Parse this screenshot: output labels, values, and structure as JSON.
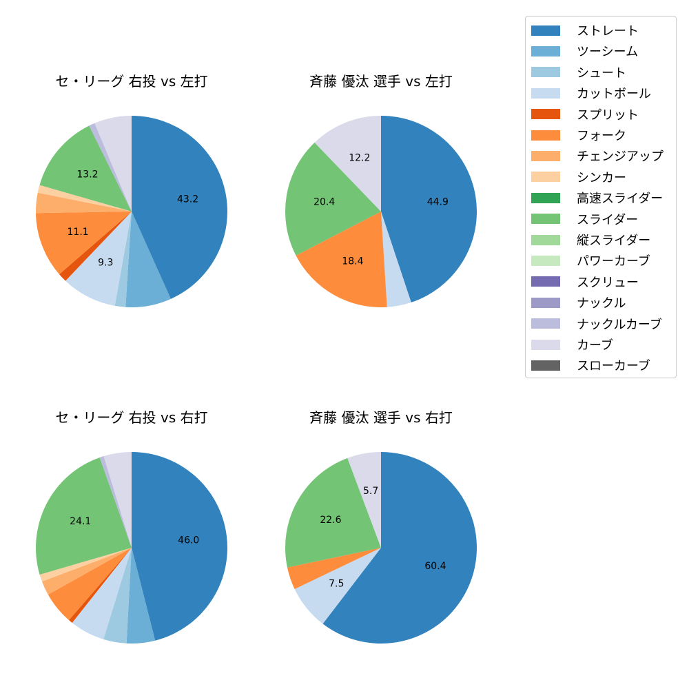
{
  "chart_data": [
    {
      "type": "pie",
      "title": "セ・リーグ 右投 vs 左打",
      "categories": [
        "ストレート",
        "ツーシーム",
        "シュート",
        "カットボール",
        "スプリット",
        "フォーク",
        "チェンジアップ",
        "シンカー",
        "スライダー",
        "ナックルカーブ",
        "カーブ"
      ],
      "values": [
        43.2,
        7.7,
        1.8,
        9.3,
        1.5,
        11.1,
        3.4,
        1.3,
        13.2,
        1.0,
        6.3
      ],
      "labels_shown": [
        "43.2",
        "",
        "",
        "9.3",
        "",
        "11.1",
        "",
        "",
        "13.2",
        "",
        ""
      ]
    },
    {
      "type": "pie",
      "title": "斉藤 優汰 選手 vs 左打",
      "categories": [
        "ストレート",
        "カットボール",
        "フォーク",
        "スライダー",
        "カーブ"
      ],
      "values": [
        44.9,
        4.1,
        18.4,
        20.4,
        12.2
      ],
      "labels_shown": [
        "44.9",
        "",
        "18.4",
        "20.4",
        "12.2"
      ]
    },
    {
      "type": "pie",
      "title": "セ・リーグ 右投 vs 右打",
      "categories": [
        "ストレート",
        "ツーシーム",
        "シュート",
        "カットボール",
        "スプリット",
        "フォーク",
        "チェンジアップ",
        "シンカー",
        "スライダー",
        "ナックルカーブ",
        "カーブ"
      ],
      "values": [
        46.0,
        4.8,
        3.9,
        5.9,
        0.7,
        5.5,
        2.4,
        1.2,
        24.1,
        0.7,
        4.7
      ],
      "labels_shown": [
        "46.0",
        "",
        "",
        "",
        "",
        "",
        "",
        "",
        "24.1",
        "",
        ""
      ]
    },
    {
      "type": "pie",
      "title": "斉藤 優汰 選手 vs 右打",
      "categories": [
        "ストレート",
        "カットボール",
        "フォーク",
        "スライダー",
        "カーブ"
      ],
      "values": [
        60.4,
        7.5,
        3.8,
        22.6,
        5.7
      ],
      "labels_shown": [
        "60.4",
        "7.5",
        "",
        "22.6",
        "5.7"
      ]
    }
  ],
  "legend": {
    "position": "upper right",
    "items": [
      {
        "label": "ストレート",
        "color": "#3182bd"
      },
      {
        "label": "ツーシーム",
        "color": "#6baed6"
      },
      {
        "label": "シュート",
        "color": "#9ecae1"
      },
      {
        "label": "カットボール",
        "color": "#c6dbef"
      },
      {
        "label": "スプリット",
        "color": "#e6550d"
      },
      {
        "label": "フォーク",
        "color": "#fd8d3c"
      },
      {
        "label": "チェンジアップ",
        "color": "#fdae6b"
      },
      {
        "label": "シンカー",
        "color": "#fdd0a2"
      },
      {
        "label": "高速スライダー",
        "color": "#31a354"
      },
      {
        "label": "スライダー",
        "color": "#74c476"
      },
      {
        "label": "縦スライダー",
        "color": "#a1d99b"
      },
      {
        "label": "パワーカーブ",
        "color": "#c7e9c0"
      },
      {
        "label": "スクリュー",
        "color": "#756bb1"
      },
      {
        "label": "ナックル",
        "color": "#9e9ac8"
      },
      {
        "label": "ナックルカーブ",
        "color": "#bcbddc"
      },
      {
        "label": "カーブ",
        "color": "#dadaeb"
      },
      {
        "label": "スローカーブ",
        "color": "#636363"
      }
    ]
  }
}
